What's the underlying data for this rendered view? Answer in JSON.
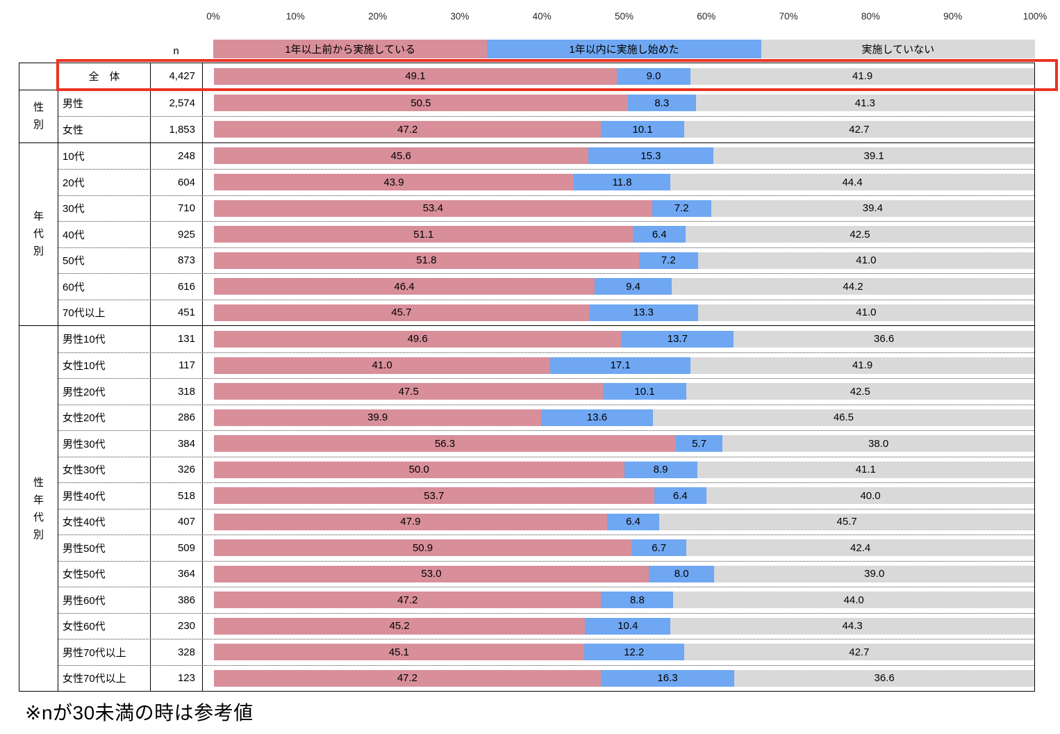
{
  "chart_data": {
    "type": "bar",
    "variant": "horizontal-stacked-100pct",
    "title": "",
    "axis": {
      "unit": "%",
      "range": [
        0,
        100
      ],
      "grid": false,
      "ticks": [
        "0%",
        "10%",
        "20%",
        "30%",
        "40%",
        "50%",
        "60%",
        "70%",
        "80%",
        "90%",
        "100%"
      ]
    },
    "n_header": "n",
    "series": [
      {
        "name": "1年以上前から実施している",
        "color": "#d98f99"
      },
      {
        "name": "1年以内に実施し始めた",
        "color": "#70a7f2"
      },
      {
        "name": "実施していない",
        "color": "#d9d9d9"
      }
    ],
    "groups": [
      {
        "label": "",
        "rows": [
          {
            "label": "全　体",
            "n": "4,427",
            "values": [
              "49.1",
              "9.0",
              "41.9"
            ],
            "center": true,
            "highlighted": true
          }
        ]
      },
      {
        "label": "性別",
        "rows": [
          {
            "label": "男性",
            "n": "2,574",
            "values": [
              "50.5",
              "8.3",
              "41.3"
            ]
          },
          {
            "label": "女性",
            "n": "1,853",
            "values": [
              "47.2",
              "10.1",
              "42.7"
            ]
          }
        ]
      },
      {
        "label": "年代別",
        "rows": [
          {
            "label": "10代",
            "n": "248",
            "values": [
              "45.6",
              "15.3",
              "39.1"
            ]
          },
          {
            "label": "20代",
            "n": "604",
            "values": [
              "43.9",
              "11.8",
              "44.4"
            ]
          },
          {
            "label": "30代",
            "n": "710",
            "values": [
              "53.4",
              "7.2",
              "39.4"
            ]
          },
          {
            "label": "40代",
            "n": "925",
            "values": [
              "51.1",
              "6.4",
              "42.5"
            ]
          },
          {
            "label": "50代",
            "n": "873",
            "values": [
              "51.8",
              "7.2",
              "41.0"
            ]
          },
          {
            "label": "60代",
            "n": "616",
            "values": [
              "46.4",
              "9.4",
              "44.2"
            ]
          },
          {
            "label": "70代以上",
            "n": "451",
            "values": [
              "45.7",
              "13.3",
              "41.0"
            ]
          }
        ]
      },
      {
        "label": "性年代別",
        "rows": [
          {
            "label": "男性10代",
            "n": "131",
            "values": [
              "49.6",
              "13.7",
              "36.6"
            ]
          },
          {
            "label": "女性10代",
            "n": "117",
            "values": [
              "41.0",
              "17.1",
              "41.9"
            ]
          },
          {
            "label": "男性20代",
            "n": "318",
            "values": [
              "47.5",
              "10.1",
              "42.5"
            ]
          },
          {
            "label": "女性20代",
            "n": "286",
            "values": [
              "39.9",
              "13.6",
              "46.5"
            ]
          },
          {
            "label": "男性30代",
            "n": "384",
            "values": [
              "56.3",
              "5.7",
              "38.0"
            ]
          },
          {
            "label": "女性30代",
            "n": "326",
            "values": [
              "50.0",
              "8.9",
              "41.1"
            ]
          },
          {
            "label": "男性40代",
            "n": "518",
            "values": [
              "53.7",
              "6.4",
              "40.0"
            ]
          },
          {
            "label": "女性40代",
            "n": "407",
            "values": [
              "47.9",
              "6.4",
              "45.7"
            ]
          },
          {
            "label": "男性50代",
            "n": "509",
            "values": [
              "50.9",
              "6.7",
              "42.4"
            ]
          },
          {
            "label": "女性50代",
            "n": "364",
            "values": [
              "53.0",
              "8.0",
              "39.0"
            ]
          },
          {
            "label": "男性60代",
            "n": "386",
            "values": [
              "47.2",
              "8.8",
              "44.0"
            ]
          },
          {
            "label": "女性60代",
            "n": "230",
            "values": [
              "45.2",
              "10.4",
              "44.3"
            ]
          },
          {
            "label": "男性70代以上",
            "n": "328",
            "values": [
              "45.1",
              "12.2",
              "42.7"
            ]
          },
          {
            "label": "女性70代以上",
            "n": "123",
            "values": [
              "47.2",
              "16.3",
              "36.6"
            ]
          }
        ]
      }
    ],
    "highlight": {
      "row": "全　体",
      "color": "#ea3323"
    },
    "footnote": "※nが30未満の時は参考値"
  }
}
